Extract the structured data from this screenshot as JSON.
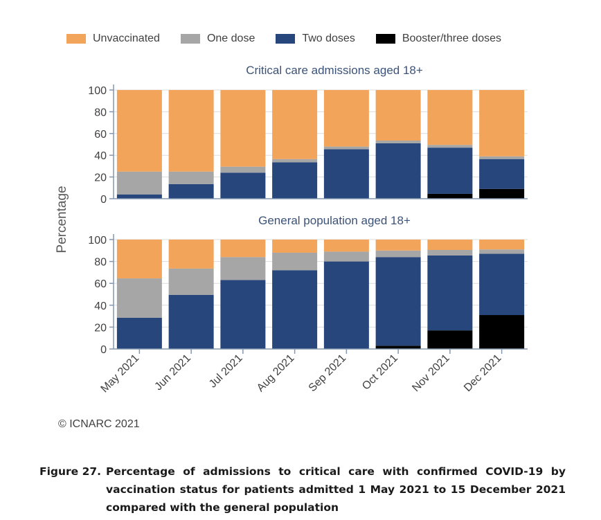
{
  "colors": {
    "unvaccinated": "#f2a45a",
    "one_dose": "#a6a6a6",
    "two_doses": "#27467b",
    "booster": "#000000",
    "axis": "#8496b0",
    "title": "#3b5278",
    "text": "#404040"
  },
  "legend": [
    {
      "key": "unvaccinated",
      "label": "Unvaccinated"
    },
    {
      "key": "one_dose",
      "label": "One dose"
    },
    {
      "key": "two_doses",
      "label": "Two doses"
    },
    {
      "key": "booster",
      "label": "Booster/three doses"
    }
  ],
  "chart_data": {
    "type": "bar",
    "stacked": true,
    "ylabel": "Percentage",
    "ylim": [
      0,
      100
    ],
    "yticks": [
      0,
      20,
      40,
      60,
      80,
      100
    ],
    "categories": [
      "May 2021",
      "Jun 2021",
      "Jul 2021",
      "Aug 2021",
      "Sep 2021",
      "Oct 2021",
      "Nov 2021",
      "Dec 2021"
    ],
    "panels": [
      {
        "title": "Critical care admissions aged 18+",
        "series": [
          {
            "key": "booster",
            "name": "Booster/three doses",
            "values": [
              0,
              0,
              0,
              0,
              0,
              0.5,
              4.5,
              9
            ]
          },
          {
            "key": "two_doses",
            "name": "Two doses",
            "values": [
              4,
              13.5,
              24,
              33.5,
              45.5,
              50.5,
              42.5,
              27.5
            ]
          },
          {
            "key": "one_dose",
            "name": "One dose",
            "values": [
              21,
              11.5,
              5.5,
              3,
              2.5,
              2.5,
              2.5,
              2.5
            ]
          },
          {
            "key": "unvaccinated",
            "name": "Unvaccinated",
            "values": [
              75,
              75,
              70.5,
              63.5,
              52,
              46.5,
              50.5,
              61
            ]
          }
        ]
      },
      {
        "title": "General population aged 18+",
        "series": [
          {
            "key": "booster",
            "name": "Booster/three doses",
            "values": [
              0,
              0,
              0,
              0,
              0,
              3,
              17,
              31
            ]
          },
          {
            "key": "two_doses",
            "name": "Two doses",
            "values": [
              28.5,
              49.5,
              63,
              72,
              80,
              81,
              68.5,
              56
            ]
          },
          {
            "key": "one_dose",
            "name": "One dose",
            "values": [
              36,
              24,
              21,
              16,
              9,
              6,
              5,
              4
            ]
          },
          {
            "key": "unvaccinated",
            "name": "Unvaccinated",
            "values": [
              35.5,
              26.5,
              16,
              12,
              11,
              10,
              9.5,
              9
            ]
          }
        ]
      }
    ]
  },
  "copyright": "© ICNARC 2021",
  "caption": {
    "lead": "Figure 27.",
    "text": "Percentage of admissions to critical care with confirmed COVID-19 by vaccination status for patients admitted 1 May 2021 to 15 December 2021 compared with the general population"
  }
}
